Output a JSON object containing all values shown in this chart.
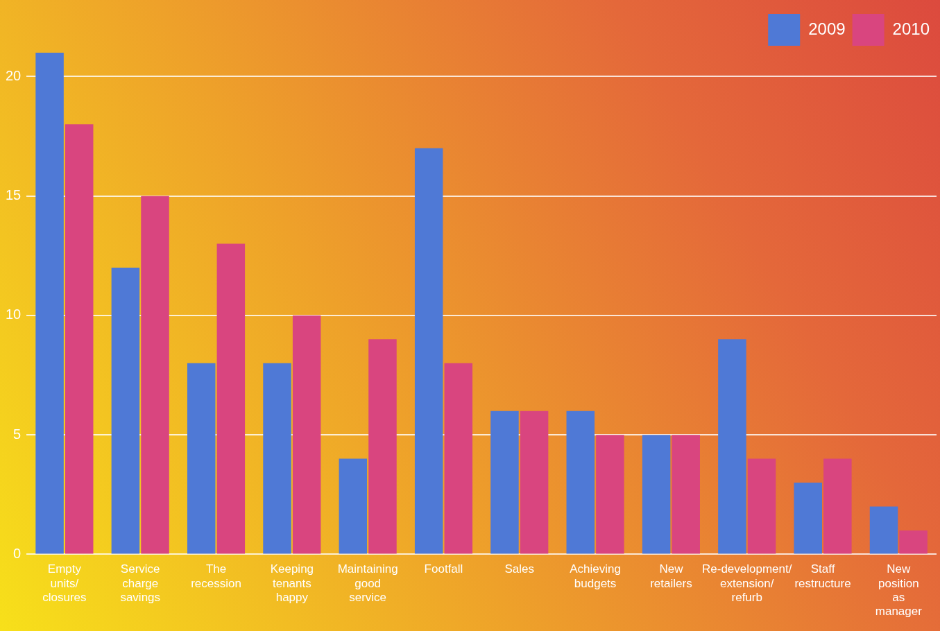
{
  "chart_data": {
    "type": "bar",
    "categories": [
      "Empty units/ closures",
      "Service charge savings",
      "The recession",
      "Keeping tenants happy",
      "Maintaining good service",
      "Footfall",
      "Sales",
      "Achieving budgets",
      "New retailers",
      "Re-development/ extension/ refurb",
      "Staff restructure",
      "New position as manager"
    ],
    "series": [
      {
        "name": "2009",
        "color": "#4f79d6",
        "values": [
          21,
          12,
          8,
          8,
          4,
          17,
          6,
          6,
          5,
          9,
          3,
          2
        ]
      },
      {
        "name": "2010",
        "color": "#d9457f",
        "values": [
          18,
          15,
          13,
          10,
          9,
          8,
          6,
          5,
          5,
          4,
          4,
          1
        ]
      }
    ],
    "ylim": [
      0,
      21
    ],
    "yticks": [
      0,
      5,
      10,
      15,
      20
    ],
    "grid": "y",
    "legend": "top right"
  }
}
